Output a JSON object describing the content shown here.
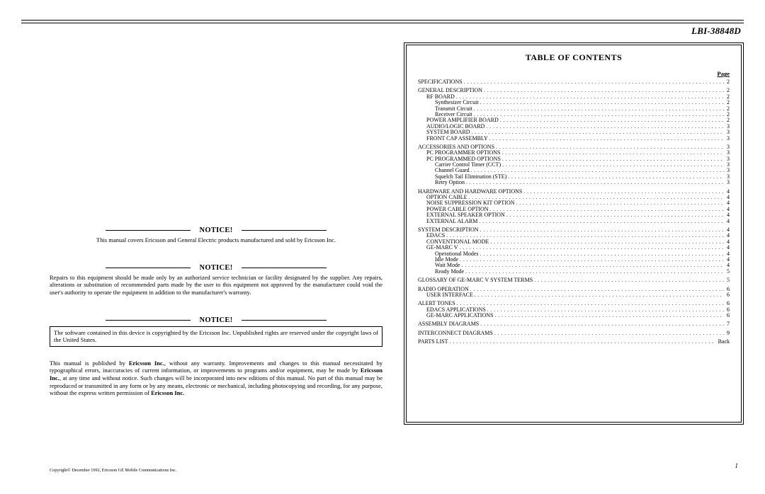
{
  "doc_id": "LBI-38848D",
  "notices": {
    "n1": {
      "label": "NOTICE!",
      "text": "This manual covers Ericsson and General Electric products manufactured and sold by Ericsson Inc."
    },
    "n2": {
      "label": "NOTICE!",
      "text": "Repairs to this equipment should be made only by an authorized service technician or facility designated by the supplier. Any repairs, alterations or substitution of recommended parts made by the user to this equipment not approved by the manufacturer could void the user's authority to operate the equipment in addition to the manufacturer's warranty."
    },
    "n3": {
      "label": "NOTICE!",
      "text": "The software contained in this device is copyrighted by the Ericsson Inc. Unpublished rights are reserved under the copyright laws of the United States."
    }
  },
  "disclaimer": "This manual is published by Ericsson Inc., without any warranty. Improvements and changes to this manual necessitated by typographical errors, inaccuracies of current information, or improvements to programs and/or equipment, may be made by Ericsson Inc., at any time and without notice. Such changes will be incorporated into new editions of this manual. No part of this manual may be reproduced or transmitted in any form or by any means, electronic or mechanical, including photocopying and recording, for any purpose, without the express written permission of Ericsson Inc.",
  "copyright": "Copyright© December 1992, Ericsson GE Mobile Communications Inc.",
  "page_number": "1",
  "toc": {
    "title": "TABLE OF CONTENTS",
    "page_label": "Page",
    "items": [
      {
        "label": "SPECIFICATIONS",
        "page": "2",
        "indent": 0,
        "gap": true
      },
      {
        "label": "GENERAL DESCRIPTION",
        "page": "2",
        "indent": 0
      },
      {
        "label": "RF BOARD",
        "page": "2",
        "indent": 1
      },
      {
        "label": "Synthesizer Circuit",
        "page": "2",
        "indent": 2
      },
      {
        "label": "Transmit Circuit",
        "page": "2",
        "indent": 2
      },
      {
        "label": "Receiver Circuit",
        "page": "2",
        "indent": 2
      },
      {
        "label": "POWER AMPLIFIER BOARD",
        "page": "2",
        "indent": 1
      },
      {
        "label": "AUDIO/LOGIC BOARD",
        "page": "3",
        "indent": 1
      },
      {
        "label": "SYSTEM BOARD",
        "page": "3",
        "indent": 1
      },
      {
        "label": "FRONT CAP ASSEMBLY",
        "page": "3",
        "indent": 1,
        "gap": true
      },
      {
        "label": "ACCESSORIES AND OPTIONS",
        "page": "3",
        "indent": 0
      },
      {
        "label": "PC PROGRAMMER OPTIONS",
        "page": "3",
        "indent": 1
      },
      {
        "label": "PC PROGRAMMED OPTIONS",
        "page": "3",
        "indent": 1
      },
      {
        "label": "Carrier Control Timer (CCT)",
        "page": "3",
        "indent": 2
      },
      {
        "label": "Channel Guard",
        "page": "3",
        "indent": 2
      },
      {
        "label": "Squelch Tail Elimination (STE)",
        "page": "3",
        "indent": 2
      },
      {
        "label": "Retry Option",
        "page": "3",
        "indent": 2,
        "gap": true
      },
      {
        "label": "HARDWARE AND HARDWARE OPTIONS",
        "page": "4",
        "indent": 0
      },
      {
        "label": "OPTION CABLE",
        "page": "4",
        "indent": 1
      },
      {
        "label": "NOISE SUPPRESSION KIT OPTION",
        "page": "4",
        "indent": 1
      },
      {
        "label": "POWER CABLE OPTION",
        "page": "4",
        "indent": 1
      },
      {
        "label": "EXTERNAL SPEAKER OPTION",
        "page": "4",
        "indent": 1
      },
      {
        "label": "EXTERNAL ALARM",
        "page": "4",
        "indent": 1,
        "gap": true
      },
      {
        "label": "SYSTEM DESCRIPTION",
        "page": "4",
        "indent": 0
      },
      {
        "label": "EDACS",
        "page": "4",
        "indent": 1
      },
      {
        "label": "CONVENTIONAL MODE",
        "page": "4",
        "indent": 1
      },
      {
        "label": "GE-MARC V",
        "page": "4",
        "indent": 1
      },
      {
        "label": "Operational Modes",
        "page": "4",
        "indent": 2
      },
      {
        "label": "Idle Mode",
        "page": "4",
        "indent": 2
      },
      {
        "label": "Wait Mode",
        "page": "4",
        "indent": 2
      },
      {
        "label": "Ready Mode",
        "page": "5",
        "indent": 2,
        "gap": true
      },
      {
        "label": "GLOSSARY OF GE-MARC V SYSTEM TERMS",
        "page": "5",
        "indent": 0,
        "gap": true
      },
      {
        "label": "RADIO OPERATION",
        "page": "6",
        "indent": 0
      },
      {
        "label": "USER INTERFACE",
        "page": "6",
        "indent": 1,
        "gap": true
      },
      {
        "label": "ALERT TONES",
        "page": "6",
        "indent": 0
      },
      {
        "label": "EDACS APPLICATIONS",
        "page": "6",
        "indent": 1
      },
      {
        "label": "GE-MARC APPLICATIONS",
        "page": "6",
        "indent": 1,
        "gap": true
      },
      {
        "label": "ASSEMBLY DIAGRAMS",
        "page": "7",
        "indent": 0,
        "gap": true
      },
      {
        "label": "INTERCONNECT DIAGRAMS",
        "page": "9",
        "indent": 0,
        "gap": true
      },
      {
        "label": "PARTS LIST",
        "page": "Back",
        "indent": 0
      }
    ]
  }
}
